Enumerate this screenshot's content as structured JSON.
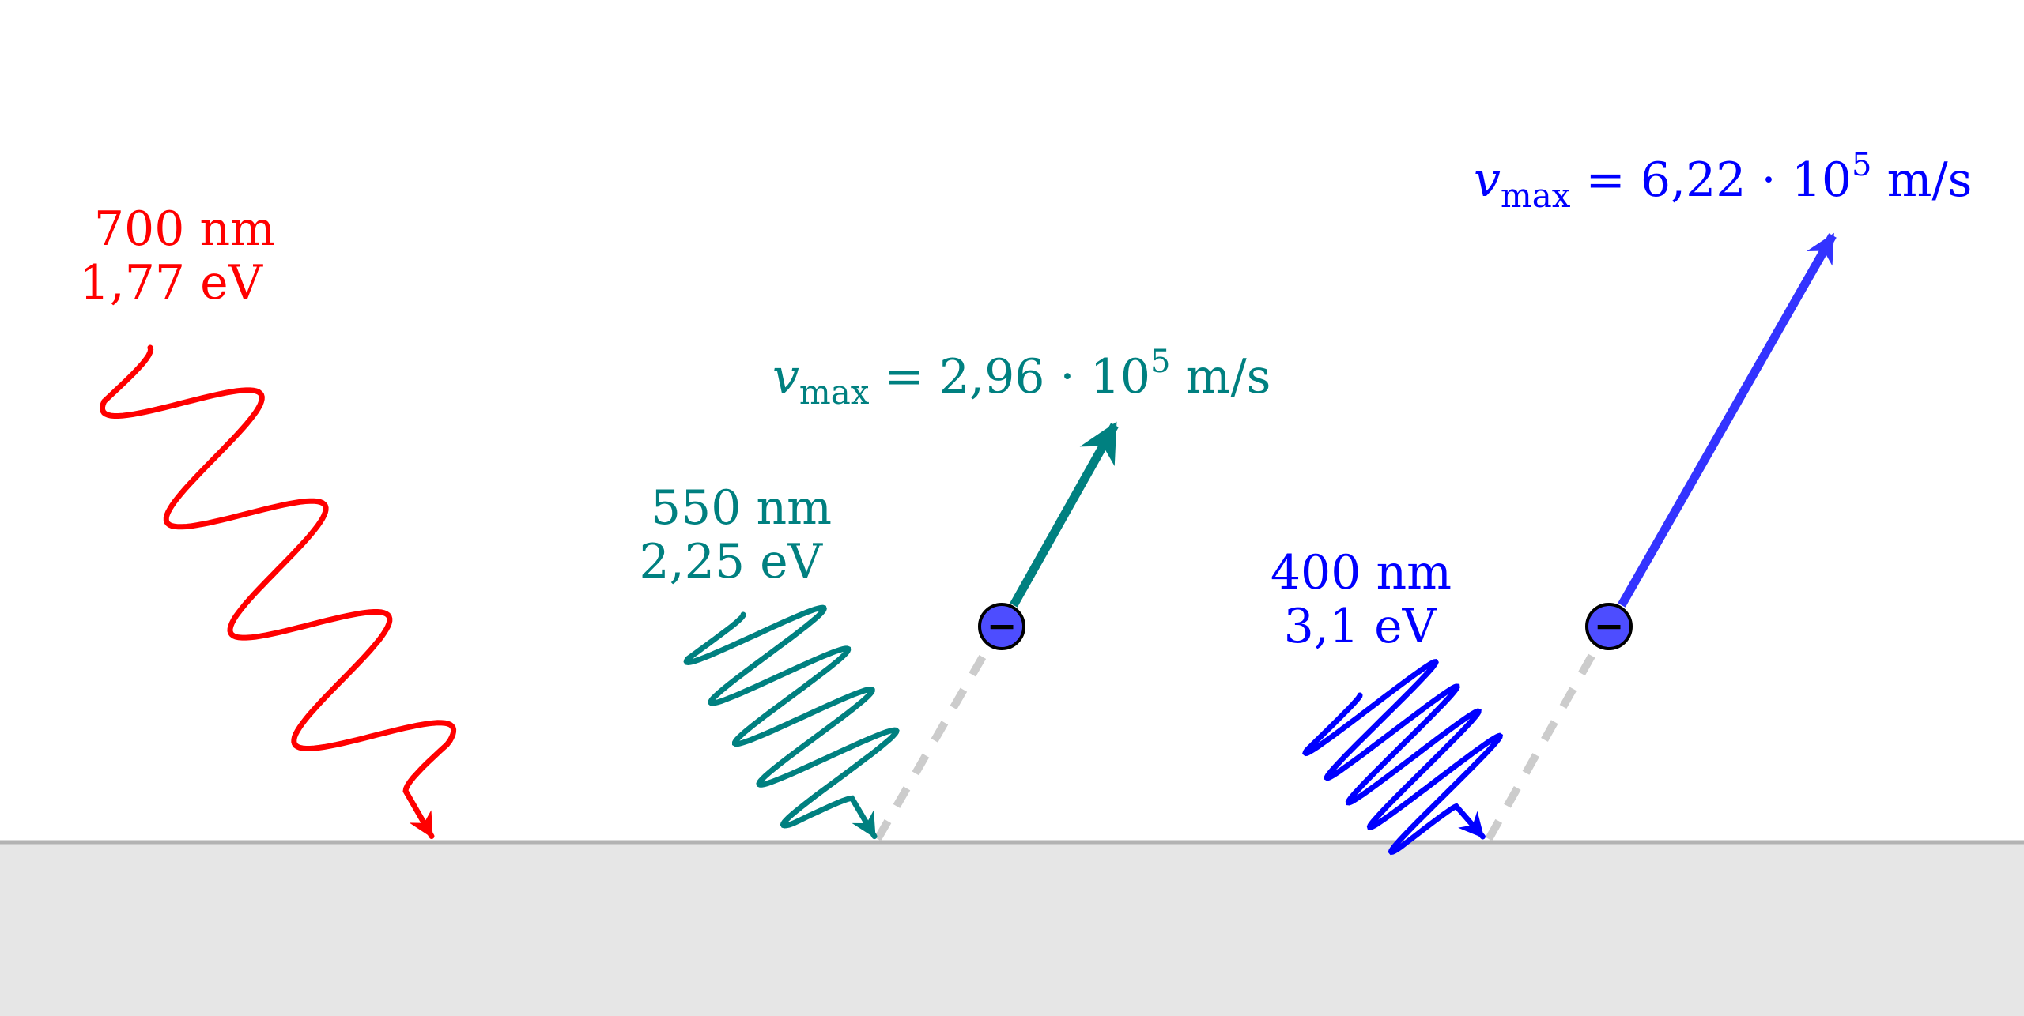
{
  "colors": {
    "red": "#ff0000",
    "teal": "#008080",
    "blue": "#0000ff",
    "blue_arrow": "#3333ff",
    "metal_fill": "#e6e6e6",
    "metal_edge": "#b3b3b3",
    "trace": "#cccccc",
    "electron": "#4d4dff"
  },
  "photons": [
    {
      "id": "red",
      "wavelength": "700 nm",
      "energy": "1,77 eV",
      "ejects_electron": false
    },
    {
      "id": "green",
      "wavelength": "550 nm",
      "energy": "2,25 eV",
      "ejects_electron": true,
      "vmax": {
        "symbol": "v",
        "sub": "max",
        "eq": " = 2,96 · 10",
        "exp": "5",
        "unit": " m/s"
      }
    },
    {
      "id": "violet",
      "wavelength": "400 nm",
      "energy": "3,1 eV",
      "ejects_electron": true,
      "vmax": {
        "symbol": "v",
        "sub": "max",
        "eq": " = 6,22 · 10",
        "exp": "5",
        "unit": " m/s"
      }
    }
  ],
  "electron_sign": "−"
}
